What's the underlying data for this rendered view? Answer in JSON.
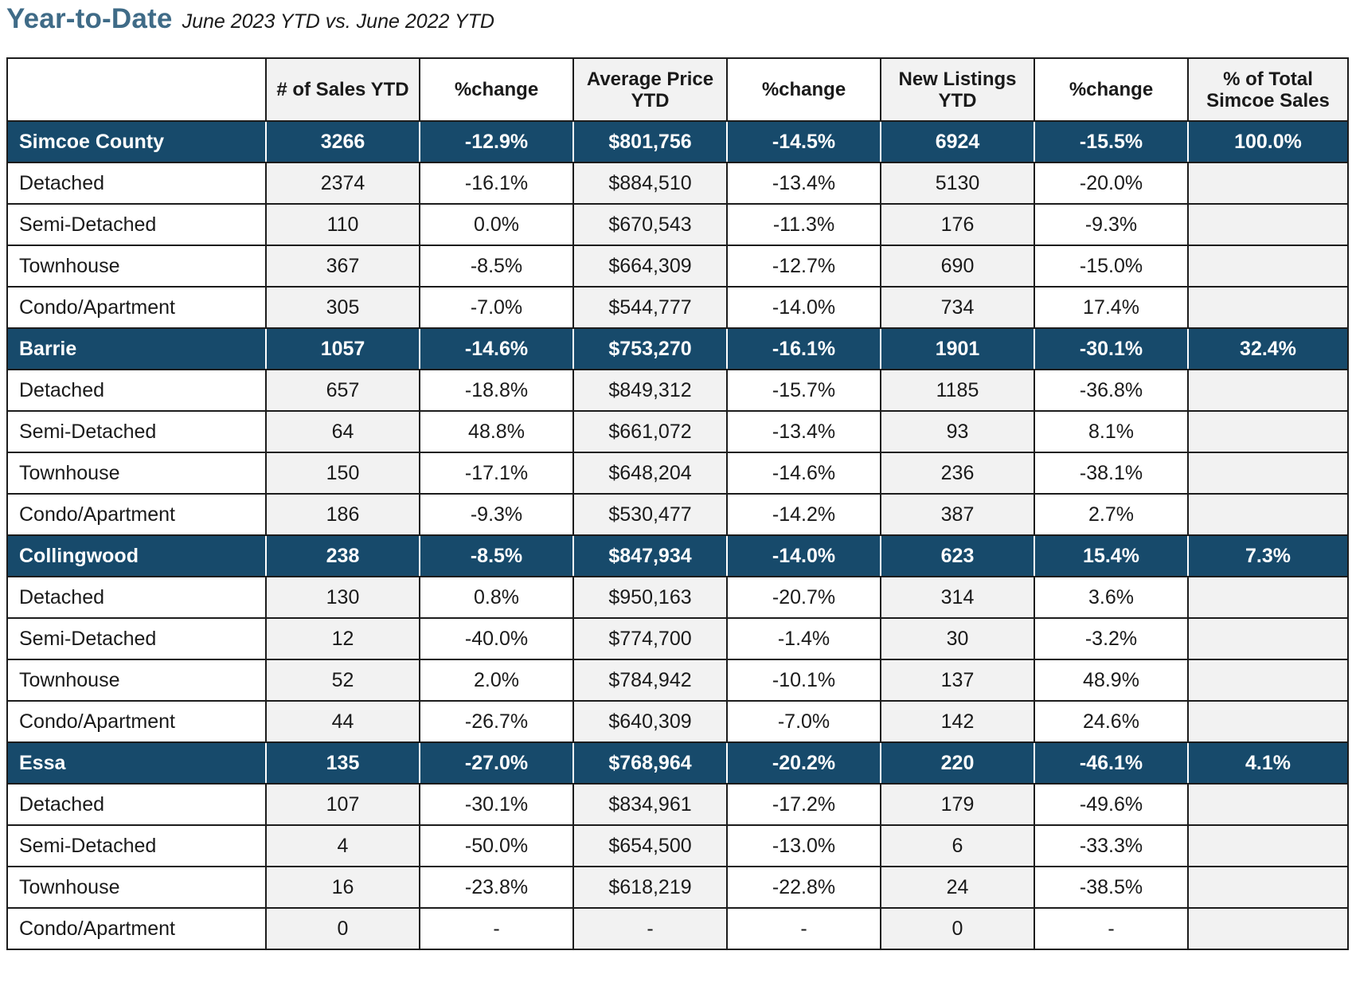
{
  "title": {
    "main": "Year-to-Date",
    "subtitle": "June 2023 YTD vs. June 2022 YTD"
  },
  "table": {
    "columns": [
      "",
      "# of Sales YTD",
      "%change",
      "Average Price YTD",
      "%change",
      "New Listings YTD",
      "%change",
      "% of Total Simcoe Sales"
    ],
    "rows": [
      {
        "type": "region",
        "cells": [
          "Simcoe County",
          "3266",
          "-12.9%",
          "$801,756",
          "-14.5%",
          "6924",
          "-15.5%",
          "100.0%"
        ]
      },
      {
        "type": "sub",
        "cells": [
          "Detached",
          "2374",
          "-16.1%",
          "$884,510",
          "-13.4%",
          "5130",
          "-20.0%",
          ""
        ]
      },
      {
        "type": "sub",
        "cells": [
          "Semi-Detached",
          "110",
          "0.0%",
          "$670,543",
          "-11.3%",
          "176",
          "-9.3%",
          ""
        ]
      },
      {
        "type": "sub",
        "cells": [
          "Townhouse",
          "367",
          "-8.5%",
          "$664,309",
          "-12.7%",
          "690",
          "-15.0%",
          ""
        ]
      },
      {
        "type": "sub",
        "cells": [
          "Condo/Apartment",
          "305",
          "-7.0%",
          "$544,777",
          "-14.0%",
          "734",
          "17.4%",
          ""
        ]
      },
      {
        "type": "region",
        "cells": [
          "Barrie",
          "1057",
          "-14.6%",
          "$753,270",
          "-16.1%",
          "1901",
          "-30.1%",
          "32.4%"
        ]
      },
      {
        "type": "sub",
        "cells": [
          "Detached",
          "657",
          "-18.8%",
          "$849,312",
          "-15.7%",
          "1185",
          "-36.8%",
          ""
        ]
      },
      {
        "type": "sub",
        "cells": [
          "Semi-Detached",
          "64",
          "48.8%",
          "$661,072",
          "-13.4%",
          "93",
          "8.1%",
          ""
        ]
      },
      {
        "type": "sub",
        "cells": [
          "Townhouse",
          "150",
          "-17.1%",
          "$648,204",
          "-14.6%",
          "236",
          "-38.1%",
          ""
        ]
      },
      {
        "type": "sub",
        "cells": [
          "Condo/Apartment",
          "186",
          "-9.3%",
          "$530,477",
          "-14.2%",
          "387",
          "2.7%",
          ""
        ]
      },
      {
        "type": "region",
        "cells": [
          "Collingwood",
          "238",
          "-8.5%",
          "$847,934",
          "-14.0%",
          "623",
          "15.4%",
          "7.3%"
        ]
      },
      {
        "type": "sub",
        "cells": [
          "Detached",
          "130",
          "0.8%",
          "$950,163",
          "-20.7%",
          "314",
          "3.6%",
          ""
        ]
      },
      {
        "type": "sub",
        "cells": [
          "Semi-Detached",
          "12",
          "-40.0%",
          "$774,700",
          "-1.4%",
          "30",
          "-3.2%",
          ""
        ]
      },
      {
        "type": "sub",
        "cells": [
          "Townhouse",
          "52",
          "2.0%",
          "$784,942",
          "-10.1%",
          "137",
          "48.9%",
          ""
        ]
      },
      {
        "type": "sub",
        "cells": [
          "Condo/Apartment",
          "44",
          "-26.7%",
          "$640,309",
          "-7.0%",
          "142",
          "24.6%",
          ""
        ]
      },
      {
        "type": "region",
        "cells": [
          "Essa",
          "135",
          "-27.0%",
          "$768,964",
          "-20.2%",
          "220",
          "-46.1%",
          "4.1%"
        ]
      },
      {
        "type": "sub",
        "cells": [
          "Detached",
          "107",
          "-30.1%",
          "$834,961",
          "-17.2%",
          "179",
          "-49.6%",
          ""
        ]
      },
      {
        "type": "sub",
        "cells": [
          "Semi-Detached",
          "4",
          "-50.0%",
          "$654,500",
          "-13.0%",
          "6",
          "-33.3%",
          ""
        ]
      },
      {
        "type": "sub",
        "cells": [
          "Townhouse",
          "16",
          "-23.8%",
          "$618,219",
          "-22.8%",
          "24",
          "-38.5%",
          ""
        ]
      },
      {
        "type": "sub",
        "cells": [
          "Condo/Apartment",
          "0",
          "-",
          "-",
          "-",
          "0",
          "-",
          ""
        ]
      }
    ]
  },
  "colors": {
    "title": "#3f6b87",
    "region_row": "#174a6b",
    "alt_column": "#f2f2f2",
    "border": "#1c1c1c"
  }
}
